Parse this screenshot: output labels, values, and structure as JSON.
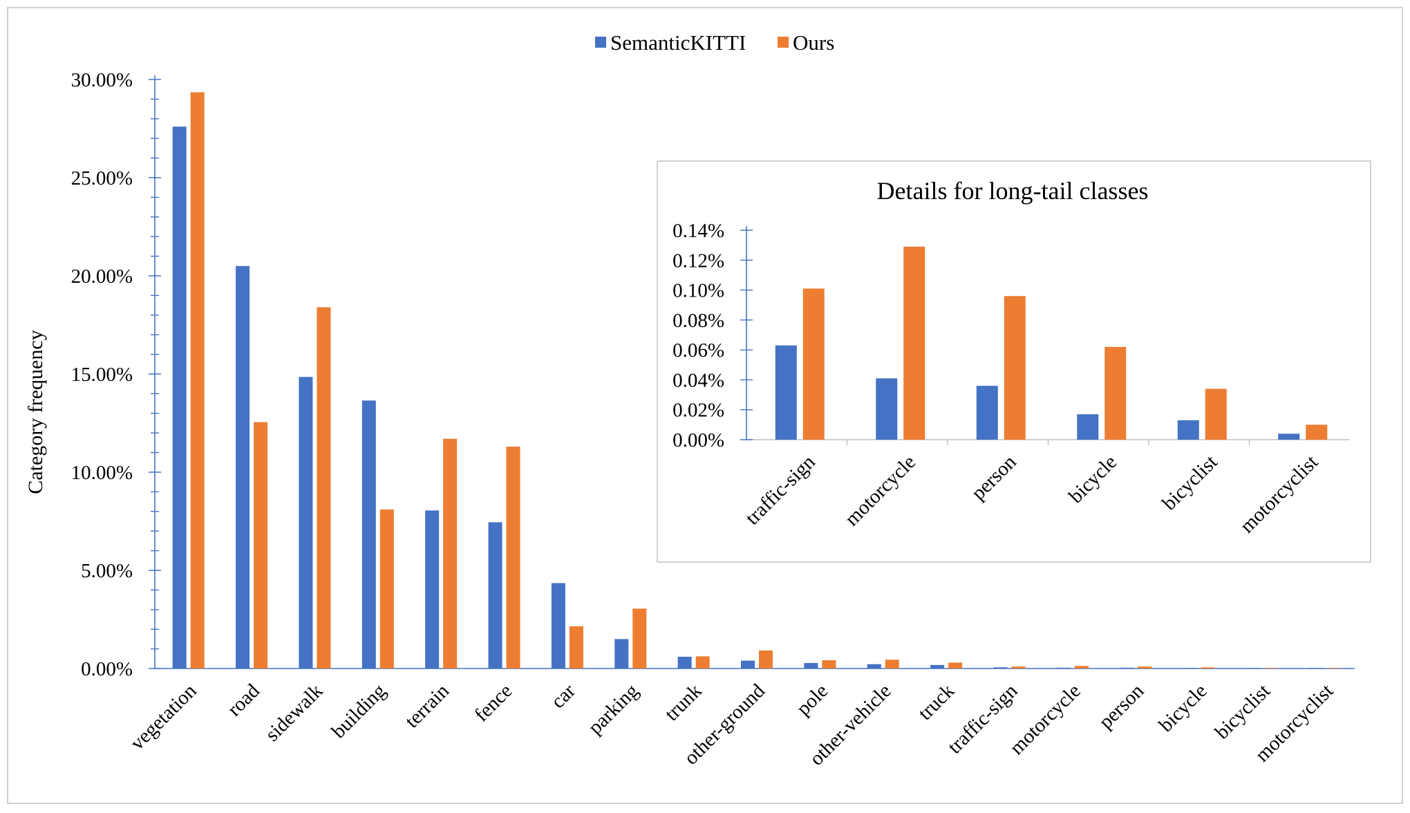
{
  "colors": {
    "semantickitti": "#4472C4",
    "ours": "#ED7D31",
    "axis": "#4472C4",
    "frame": "#D0D0D0"
  },
  "legend": {
    "items": [
      "SemanticKITTI",
      "Ours"
    ]
  },
  "chart_data": [
    {
      "type": "bar",
      "title": "",
      "xlabel": "",
      "ylabel": "Category frequency",
      "ylim": [
        0,
        30
      ],
      "unit": "%",
      "yticks": [
        "0.00%",
        "5.00%",
        "10.00%",
        "15.00%",
        "20.00%",
        "25.00%",
        "30.00%"
      ],
      "categories": [
        "vegetation",
        "road",
        "sidewalk",
        "building",
        "terrain",
        "fence",
        "car",
        "parking",
        "trunk",
        "other-ground",
        "pole",
        "other-vehicle",
        "truck",
        "traffic-sign",
        "motorcycle",
        "person",
        "bicycle",
        "bicyclist",
        "motorcyclist"
      ],
      "series": [
        {
          "name": "SemanticKITTI",
          "values": [
            27.6,
            20.5,
            14.85,
            13.65,
            8.05,
            7.45,
            4.35,
            1.5,
            0.6,
            0.4,
            0.28,
            0.22,
            0.18,
            0.06,
            0.04,
            0.04,
            0.02,
            0.01,
            0.004
          ]
        },
        {
          "name": "Ours",
          "values": [
            29.35,
            12.55,
            18.4,
            8.1,
            11.7,
            11.3,
            2.15,
            3.05,
            0.62,
            0.92,
            0.42,
            0.45,
            0.3,
            0.1,
            0.13,
            0.1,
            0.06,
            0.03,
            0.01
          ]
        }
      ],
      "legend": "top-center",
      "grid": false
    },
    {
      "type": "bar",
      "title": "Details for long-tail classes",
      "xlabel": "",
      "ylabel": "",
      "ylim": [
        0,
        0.14
      ],
      "unit": "%",
      "yticks": [
        "0.00%",
        "0.02%",
        "0.04%",
        "0.06%",
        "0.08%",
        "0.10%",
        "0.12%",
        "0.14%"
      ],
      "categories": [
        "traffic-sign",
        "motorcycle",
        "person",
        "bicycle",
        "bicyclist",
        "motorcyclist"
      ],
      "series": [
        {
          "name": "SemanticKITTI",
          "values": [
            0.063,
            0.041,
            0.036,
            0.017,
            0.013,
            0.004
          ]
        },
        {
          "name": "Ours",
          "values": [
            0.101,
            0.129,
            0.096,
            0.062,
            0.034,
            0.01
          ]
        }
      ],
      "grid": false
    }
  ]
}
